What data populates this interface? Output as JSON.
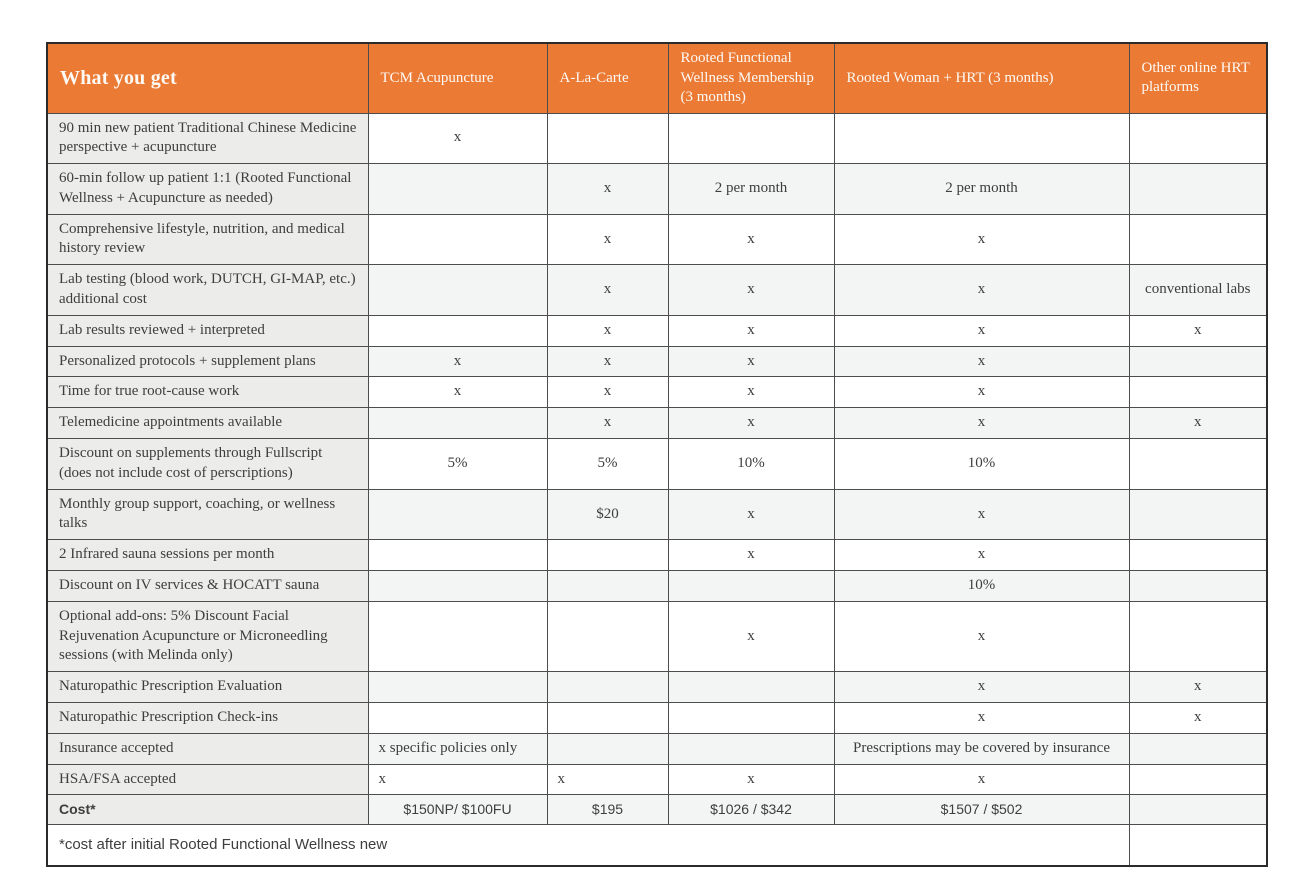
{
  "colors": {
    "header_bg": "#EB7A34",
    "header_text": "#FDF9F5",
    "label_column_bg": "#ECECEA",
    "row_alt_bg": "#F3F4F4",
    "row_bg": "#FFFFFF",
    "grid_border": "#4D4D4D",
    "outer_border": "#2B2B2B",
    "body_text": "#3E3E3E"
  },
  "table": {
    "title_column_header": "What you get",
    "columns": [
      "TCM Acupuncture",
      "A-La-Carte",
      "Rooted Functional Wellness Membership (3 months)",
      "Rooted Woman + HRT (3 months)",
      "Other online HRT platforms"
    ],
    "rows": [
      {
        "label": "90 min new patient Traditional Chinese Medicine perspective + acupuncture",
        "cells": [
          "x",
          "",
          "",
          "",
          ""
        ]
      },
      {
        "label": "60-min follow up patient 1:1 (Rooted Functional Wellness + Acupuncture as needed)",
        "cells": [
          "",
          "x",
          "2 per month",
          "2 per month",
          ""
        ]
      },
      {
        "label": "Comprehensive lifestyle, nutrition, and medical history review",
        "cells": [
          "",
          "x",
          "x",
          "x",
          ""
        ]
      },
      {
        "label": "Lab testing (blood work, DUTCH, GI-MAP, etc.) additional cost",
        "cells": [
          "",
          "x",
          "x",
          "x",
          "conventional labs"
        ]
      },
      {
        "label": "Lab results reviewed + interpreted",
        "cells": [
          "",
          "x",
          "x",
          "x",
          "x"
        ]
      },
      {
        "label": "Personalized protocols + supplement plans",
        "cells": [
          "x",
          "x",
          "x",
          "x",
          ""
        ]
      },
      {
        "label": "Time for true root-cause work",
        "cells": [
          "x",
          "x",
          "x",
          "x",
          ""
        ]
      },
      {
        "label": "Telemedicine appointments available",
        "cells": [
          "",
          "x",
          "x",
          "x",
          "x"
        ]
      },
      {
        "label": "Discount on supplements through Fullscript (does not include cost of perscriptions)",
        "cells": [
          "5%",
          "5%",
          "10%",
          "10%",
          ""
        ]
      },
      {
        "label": "Monthly group support, coaching, or wellness talks",
        "cells": [
          "",
          "$20",
          "x",
          "x",
          ""
        ]
      },
      {
        "label": "2 Infrared sauna sessions per month",
        "cells": [
          "",
          "",
          "x",
          "x",
          ""
        ]
      },
      {
        "label": "Discount on IV services & HOCATT sauna",
        "cells": [
          "",
          "",
          "",
          "10%",
          ""
        ]
      },
      {
        "label": "Optional add-ons: 5% Discount Facial Rejuvenation Acupuncture or Microneedling sessions (with Melinda only)",
        "cells": [
          "",
          "",
          "x",
          "x",
          ""
        ]
      },
      {
        "label": "Naturopathic Prescription Evaluation",
        "cells": [
          "",
          "",
          "",
          "x",
          "x"
        ]
      },
      {
        "label": "Naturopathic Prescription Check-ins",
        "cells": [
          "",
          "",
          "",
          "x",
          "x"
        ]
      },
      {
        "label": "Insurance accepted",
        "cells": [
          "x specific policies only",
          "",
          "",
          "Prescriptions may be covered by insurance",
          ""
        ],
        "aligns": [
          "left",
          "center",
          "center",
          "center",
          "center"
        ]
      },
      {
        "label": "HSA/FSA accepted",
        "cells": [
          "x",
          "x",
          "x",
          "x",
          ""
        ],
        "aligns": [
          "left",
          "left",
          "center",
          "center",
          "center"
        ]
      },
      {
        "label": "Cost*",
        "cells": [
          "$150NP/ $100FU",
          "$195",
          "$1026 / $342",
          "$1507 / $502",
          ""
        ],
        "style": "cost"
      }
    ],
    "footnote": "*cost after initial Rooted Functional Wellness new"
  }
}
